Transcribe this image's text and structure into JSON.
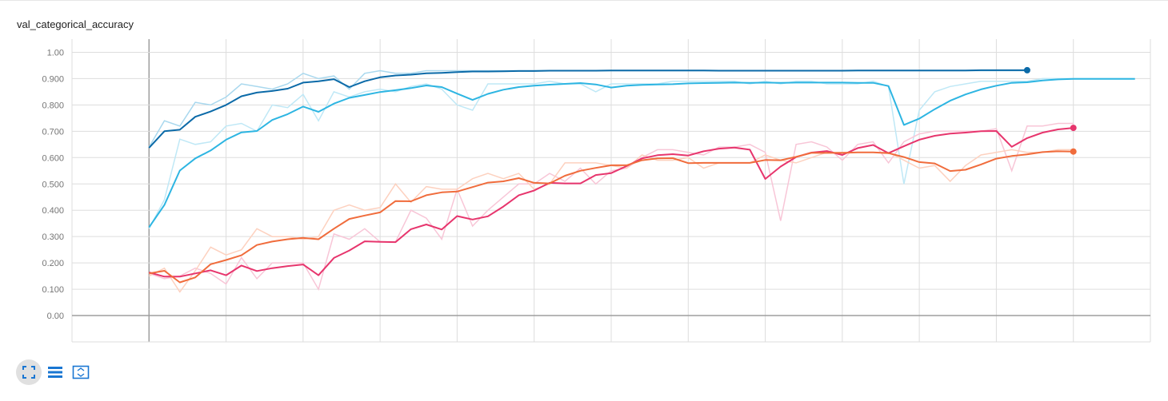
{
  "title": "val_categorical_accuracy",
  "toolbar": {
    "icons": [
      "expand-icon",
      "list-icon",
      "fit-domain-icon"
    ]
  },
  "chart_data": {
    "type": "line",
    "title": "val_categorical_accuracy",
    "xlabel": "",
    "ylabel": "",
    "ylim": [
      -0.1,
      1.05
    ],
    "yticks": [
      0.0,
      0.1,
      0.2,
      0.3,
      0.4,
      0.5,
      0.6,
      0.7,
      0.8,
      0.9,
      1.0
    ],
    "ytick_labels": [
      "0.00",
      "0.100",
      "0.200",
      "0.300",
      "0.400",
      "0.500",
      "0.600",
      "0.700",
      "0.800",
      "0.900",
      "1.00"
    ],
    "xlim": [
      -5,
      65
    ],
    "grid": true,
    "legend": "none",
    "series": [
      {
        "color": "#1f77b4",
        "smoothed_color": "#0b6aa8",
        "raw_color": "#a9d8ee",
        "end_marker": true,
        "raw": [
          0.64,
          0.74,
          0.72,
          0.81,
          0.8,
          0.83,
          0.88,
          0.87,
          0.86,
          0.88,
          0.92,
          0.9,
          0.91,
          0.86,
          0.92,
          0.93,
          0.92,
          0.92,
          0.93,
          0.93,
          0.93,
          0.93,
          0.93,
          0.93,
          0.93,
          0.93,
          0.93,
          0.93,
          0.93,
          0.93,
          0.93,
          0.93,
          0.93,
          0.93,
          0.93,
          0.93,
          0.93,
          0.93,
          0.93,
          0.93,
          0.93,
          0.93,
          0.93,
          0.93,
          0.93,
          0.93,
          0.93,
          0.93,
          0.93,
          0.93,
          0.93,
          0.93,
          0.93,
          0.93,
          0.93,
          0.93,
          0.93,
          0.93
        ],
        "smoothed": [
          0.637,
          0.7,
          0.706,
          0.755,
          0.775,
          0.8,
          0.833,
          0.847,
          0.853,
          0.862,
          0.885,
          0.89,
          0.898,
          0.868,
          0.89,
          0.905,
          0.912,
          0.915,
          0.92,
          0.922,
          0.925,
          0.927,
          0.927,
          0.928,
          0.929,
          0.929,
          0.93,
          0.93,
          0.93,
          0.93,
          0.931,
          0.931,
          0.931,
          0.931,
          0.931,
          0.931,
          0.931,
          0.93,
          0.93,
          0.93,
          0.93,
          0.93,
          0.93,
          0.93,
          0.93,
          0.93,
          0.931,
          0.931,
          0.931,
          0.931,
          0.931,
          0.931,
          0.931,
          0.931,
          0.932,
          0.932,
          0.932,
          0.932
        ]
      },
      {
        "color": "#2db5e2",
        "smoothed_color": "#2db5e2",
        "raw_color": "#bfe8f6",
        "end_marker": false,
        "raw": [
          0.33,
          0.44,
          0.67,
          0.65,
          0.66,
          0.72,
          0.73,
          0.7,
          0.8,
          0.79,
          0.84,
          0.74,
          0.85,
          0.83,
          0.85,
          0.86,
          0.85,
          0.87,
          0.88,
          0.86,
          0.8,
          0.78,
          0.88,
          0.88,
          0.88,
          0.88,
          0.89,
          0.88,
          0.88,
          0.85,
          0.88,
          0.88,
          0.88,
          0.88,
          0.89,
          0.89,
          0.89,
          0.89,
          0.89,
          0.88,
          0.89,
          0.88,
          0.89,
          0.89,
          0.88,
          0.88,
          0.88,
          0.89,
          0.87,
          0.5,
          0.78,
          0.85,
          0.87,
          0.88,
          0.89,
          0.89,
          0.89,
          0.89,
          0.9,
          0.9,
          0.9,
          0.9,
          0.9,
          0.9,
          0.9
        ],
        "smoothed": [
          0.335,
          0.42,
          0.551,
          0.597,
          0.627,
          0.668,
          0.696,
          0.701,
          0.743,
          0.765,
          0.794,
          0.774,
          0.805,
          0.827,
          0.838,
          0.849,
          0.856,
          0.864,
          0.874,
          0.868,
          0.843,
          0.819,
          0.842,
          0.858,
          0.868,
          0.873,
          0.877,
          0.88,
          0.883,
          0.878,
          0.866,
          0.873,
          0.876,
          0.878,
          0.879,
          0.882,
          0.883,
          0.884,
          0.885,
          0.884,
          0.885,
          0.884,
          0.885,
          0.885,
          0.885,
          0.885,
          0.884,
          0.884,
          0.872,
          0.724,
          0.748,
          0.784,
          0.816,
          0.84,
          0.859,
          0.873,
          0.884,
          0.886,
          0.893,
          0.897,
          0.899,
          0.899,
          0.899,
          0.899,
          0.899
        ]
      },
      {
        "color": "#e7356d",
        "smoothed_color": "#e7356d",
        "raw_color": "#f8c6d7",
        "end_marker": true,
        "raw": [
          0.16,
          0.14,
          0.15,
          0.18,
          0.16,
          0.12,
          0.22,
          0.14,
          0.2,
          0.2,
          0.2,
          0.1,
          0.31,
          0.29,
          0.33,
          0.28,
          0.28,
          0.4,
          0.37,
          0.29,
          0.48,
          0.34,
          0.4,
          0.45,
          0.5,
          0.5,
          0.54,
          0.51,
          0.56,
          0.5,
          0.55,
          0.56,
          0.6,
          0.63,
          0.63,
          0.62,
          0.61,
          0.64,
          0.64,
          0.65,
          0.62,
          0.36,
          0.65,
          0.66,
          0.64,
          0.59,
          0.65,
          0.66,
          0.58,
          0.66,
          0.69,
          0.7,
          0.7,
          0.7,
          0.7,
          0.71,
          0.55,
          0.72,
          0.72,
          0.73,
          0.73
        ],
        "smoothed": [
          0.164,
          0.148,
          0.148,
          0.16,
          0.172,
          0.153,
          0.19,
          0.169,
          0.18,
          0.188,
          0.194,
          0.153,
          0.219,
          0.247,
          0.282,
          0.28,
          0.279,
          0.328,
          0.346,
          0.327,
          0.378,
          0.365,
          0.377,
          0.414,
          0.457,
          0.475,
          0.504,
          0.502,
          0.502,
          0.534,
          0.541,
          0.568,
          0.597,
          0.609,
          0.613,
          0.608,
          0.624,
          0.634,
          0.638,
          0.63,
          0.519,
          0.566,
          0.602,
          0.619,
          0.625,
          0.61,
          0.636,
          0.648,
          0.617,
          0.643,
          0.668,
          0.683,
          0.691,
          0.695,
          0.7,
          0.701,
          0.641,
          0.674,
          0.695,
          0.707,
          0.713
        ]
      },
      {
        "color": "#f06c3c",
        "smoothed_color": "#f06c3c",
        "raw_color": "#fdd1bf",
        "end_marker": true,
        "raw": [
          0.15,
          0.18,
          0.09,
          0.17,
          0.26,
          0.23,
          0.25,
          0.33,
          0.3,
          0.3,
          0.29,
          0.3,
          0.4,
          0.42,
          0.4,
          0.41,
          0.5,
          0.43,
          0.49,
          0.48,
          0.48,
          0.52,
          0.54,
          0.52,
          0.54,
          0.48,
          0.5,
          0.58,
          0.58,
          0.58,
          0.57,
          0.56,
          0.61,
          0.59,
          0.59,
          0.6,
          0.56,
          0.58,
          0.58,
          0.58,
          0.61,
          0.59,
          0.58,
          0.6,
          0.62,
          0.62,
          0.62,
          0.62,
          0.62,
          0.59,
          0.56,
          0.57,
          0.51,
          0.57,
          0.61,
          0.62,
          0.63,
          0.62,
          0.62,
          0.63,
          0.63
        ],
        "smoothed": [
          0.16,
          0.17,
          0.126,
          0.145,
          0.195,
          0.211,
          0.229,
          0.268,
          0.281,
          0.29,
          0.295,
          0.29,
          0.33,
          0.367,
          0.38,
          0.392,
          0.435,
          0.434,
          0.457,
          0.468,
          0.471,
          0.488,
          0.505,
          0.51,
          0.522,
          0.504,
          0.502,
          0.531,
          0.55,
          0.561,
          0.571,
          0.571,
          0.59,
          0.597,
          0.598,
          0.579,
          0.58,
          0.58,
          0.58,
          0.58,
          0.591,
          0.59,
          0.603,
          0.618,
          0.618,
          0.618,
          0.62,
          0.62,
          0.617,
          0.602,
          0.583,
          0.578,
          0.549,
          0.554,
          0.574,
          0.596,
          0.606,
          0.612,
          0.621,
          0.624,
          0.623
        ]
      }
    ]
  }
}
